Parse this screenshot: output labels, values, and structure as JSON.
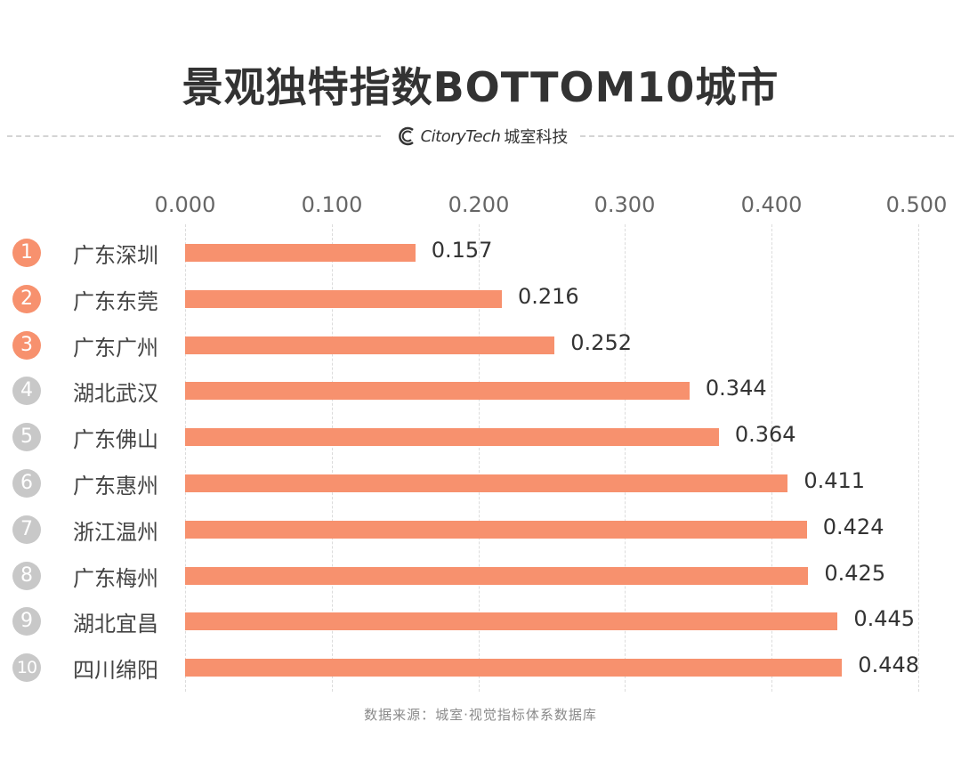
{
  "header": {
    "title": "景观独特指数BOTTOM10城市",
    "brand_en": "CitoryTech",
    "brand_cn": "城室科技",
    "logo_icon": "citorytech-c-logo-icon"
  },
  "footer": {
    "source": "数据来源：城室·视觉指标体系数据库"
  },
  "colors": {
    "bar": "#F7916E",
    "rank_top3": "#F7916E",
    "rank_other": "#C8C8C8",
    "title": "#333333",
    "gridline": "#DCDCDC"
  },
  "axis": {
    "ticks": [
      "0.000",
      "0.100",
      "0.200",
      "0.300",
      "0.400",
      "0.500"
    ]
  },
  "rows": [
    {
      "rank": "1",
      "city": "广东深圳",
      "value": "0.157"
    },
    {
      "rank": "2",
      "city": "广东东莞",
      "value": "0.216"
    },
    {
      "rank": "3",
      "city": "广东广州",
      "value": "0.252"
    },
    {
      "rank": "4",
      "city": "湖北武汉",
      "value": "0.344"
    },
    {
      "rank": "5",
      "city": "广东佛山",
      "value": "0.364"
    },
    {
      "rank": "6",
      "city": "广东惠州",
      "value": "0.411"
    },
    {
      "rank": "7",
      "city": "浙江温州",
      "value": "0.424"
    },
    {
      "rank": "8",
      "city": "广东梅州",
      "value": "0.425"
    },
    {
      "rank": "9",
      "city": "湖北宜昌",
      "value": "0.445"
    },
    {
      "rank": "10",
      "city": "四川绵阳",
      "value": "0.448"
    }
  ],
  "chart_data": {
    "type": "bar",
    "orientation": "horizontal",
    "title": "景观独特指数BOTTOM10城市",
    "categories": [
      "广东深圳",
      "广东东莞",
      "广东广州",
      "湖北武汉",
      "广东佛山",
      "广东惠州",
      "浙江温州",
      "广东梅州",
      "湖北宜昌",
      "四川绵阳"
    ],
    "values": [
      0.157,
      0.216,
      0.252,
      0.344,
      0.364,
      0.411,
      0.424,
      0.425,
      0.445,
      0.448
    ],
    "ranks": [
      1,
      2,
      3,
      4,
      5,
      6,
      7,
      8,
      9,
      10
    ],
    "xlabel": "",
    "ylabel": "",
    "xlim": [
      0,
      0.5
    ],
    "x_ticks": [
      0.0,
      0.1,
      0.2,
      0.3,
      0.4,
      0.5
    ],
    "x_axis_position": "top",
    "grid": true,
    "data_labels": true,
    "legend": null,
    "source": "数据来源：城室·视觉指标体系数据库"
  }
}
